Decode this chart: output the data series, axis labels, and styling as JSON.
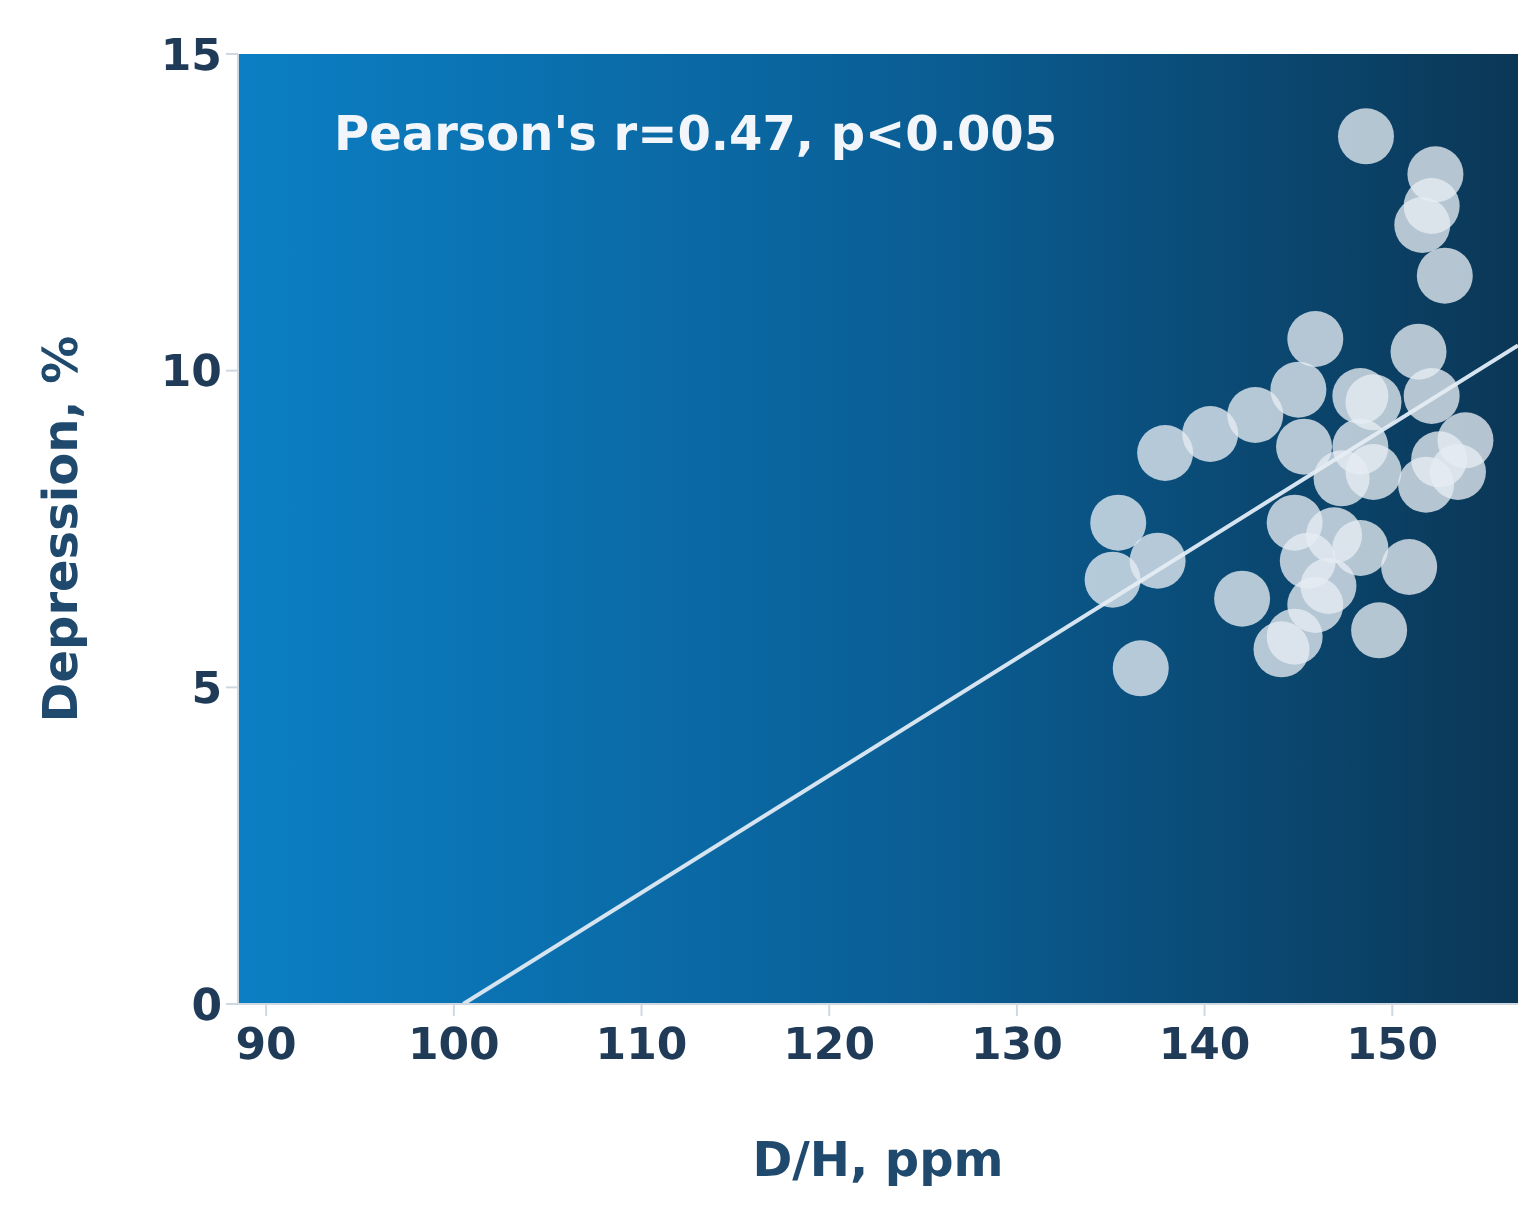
{
  "chart_data": {
    "type": "scatter",
    "xlabel": "D/H, ppm",
    "ylabel": "Depression, %",
    "annotations": [
      "Pearson's r=0.47, p<0.005"
    ],
    "xlim": [
      88.5,
      156.7
    ],
    "xticks": [
      90,
      100,
      110,
      120,
      130,
      140,
      150
    ],
    "ylim": [
      0,
      15
    ],
    "yticks": [
      0,
      5,
      10,
      15
    ],
    "series": [
      {
        "marker": "circle",
        "color": "#e6ecf2",
        "x": [
          148.6,
          152.3,
          152.1,
          151.6,
          152.8,
          145.9,
          151.4,
          145.0,
          148.3,
          142.7,
          140.3,
          137.9,
          145.3,
          152.1,
          153.9,
          152.5,
          151.8,
          153.5,
          148.3,
          149.0,
          147.3,
          135.4,
          137.5,
          135.1,
          144.8,
          146.9,
          148.3,
          145.5,
          146.6,
          150.9,
          142.0,
          144.8,
          144.1,
          149.3,
          136.6,
          145.9,
          149.0
        ],
        "values": [
          13.7,
          13.1,
          12.6,
          12.3,
          11.5,
          10.5,
          10.3,
          9.7,
          9.6,
          9.3,
          9.0,
          8.7,
          8.8,
          9.6,
          8.9,
          8.6,
          8.2,
          8.4,
          8.8,
          8.4,
          8.3,
          7.6,
          7.0,
          6.7,
          7.6,
          7.4,
          7.2,
          7.0,
          6.6,
          6.9,
          6.4,
          5.8,
          5.6,
          5.9,
          5.3,
          6.3,
          9.5
        ]
      },
      {
        "type": "line",
        "marker": "none",
        "color": "#d5e4f0",
        "x": [
          100.5,
          156.7
        ],
        "values": [
          0,
          10.4
        ]
      }
    ]
  }
}
